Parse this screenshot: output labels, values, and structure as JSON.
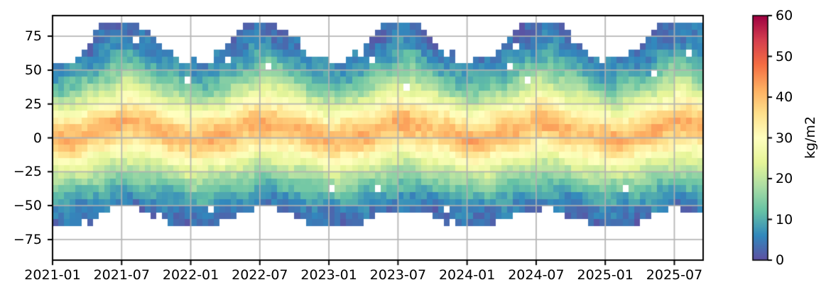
{
  "figure": {
    "background": "#ffffff"
  },
  "chart_data": {
    "type": "heatmap",
    "title": "",
    "xlabel": "",
    "ylabel": "",
    "x_axis": {
      "tick_labels": [
        "2021-01",
        "2021-07",
        "2022-01",
        "2022-07",
        "2023-01",
        "2023-07",
        "2024-01",
        "2024-07",
        "2025-01",
        "2025-07"
      ],
      "tick_offsets_months": [
        0,
        6,
        12,
        18,
        24,
        30,
        36,
        42,
        48,
        54
      ],
      "range_months": [
        0,
        56.5
      ],
      "start_label": "2021-01"
    },
    "y_axis": {
      "tick_values": [
        75,
        50,
        25,
        0,
        -25,
        -50,
        -75
      ],
      "tick_labels": [
        "75",
        "50",
        "25",
        "0",
        "−25",
        "−50",
        "−75"
      ],
      "range": [
        -90.2,
        90.2
      ]
    },
    "grid": {
      "color": "#b0b0b0"
    },
    "colorbar": {
      "label": "kg/m2",
      "vmin": 0,
      "vmax": 60,
      "tick_values": [
        0,
        10,
        20,
        30,
        40,
        50,
        60
      ],
      "tick_labels": [
        "0",
        "10",
        "20",
        "30",
        "40",
        "50",
        "60"
      ],
      "colormap": "Spectral_r",
      "stops": [
        "#5e4fa2",
        "#3288bd",
        "#66c2a5",
        "#abdda4",
        "#e6f598",
        "#ffffbf",
        "#fee08b",
        "#fdae61",
        "#f46d43",
        "#d53e4f",
        "#9e0142"
      ]
    },
    "heatmap": {
      "columns": 113,
      "column_span_months": 0.5,
      "total_months": 56.5,
      "lat_bin_size": 5,
      "lat_centers": [
        -62.5,
        -57.5,
        -52.5,
        -47.5,
        -42.5,
        -37.5,
        -32.5,
        -27.5,
        -22.5,
        -17.5,
        -12.5,
        -7.5,
        -2.5,
        2.5,
        7.5,
        12.5,
        17.5,
        22.5,
        27.5,
        32.5,
        37.5,
        42.5,
        47.5,
        52.5,
        57.5,
        62.5,
        67.5,
        72.5,
        77.5,
        82.5
      ],
      "seasonal_profiles": {
        "anchor_months": [
          1,
          4,
          7,
          10
        ],
        "units": "kg/m2",
        "values": {
          "jan": [
            4,
            5,
            6,
            9,
            12,
            15,
            18,
            22,
            26,
            31,
            36,
            40,
            42,
            40,
            36,
            31,
            27,
            22,
            18,
            14,
            11,
            9,
            7,
            6,
            5,
            4,
            3,
            3,
            2,
            2
          ],
          "apr": [
            3,
            4,
            5,
            7,
            9,
            12,
            15,
            18,
            22,
            26,
            30,
            35,
            39,
            41,
            40,
            37,
            33,
            28,
            24,
            20,
            16,
            13,
            10,
            8,
            6,
            5,
            4,
            3,
            2,
            2
          ],
          "jul": [
            3,
            3,
            4,
            5,
            7,
            10,
            12,
            15,
            18,
            21,
            25,
            29,
            33,
            37,
            41,
            43,
            40,
            36,
            32,
            28,
            25,
            21,
            18,
            15,
            12,
            10,
            8,
            6,
            5,
            4
          ],
          "oct": [
            3,
            3,
            4,
            6,
            8,
            11,
            14,
            17,
            21,
            25,
            29,
            33,
            37,
            40,
            40,
            37,
            33,
            29,
            25,
            21,
            17,
            14,
            11,
            9,
            7,
            5,
            4,
            3,
            3,
            2
          ]
        }
      },
      "coverage": {
        "months": [
          1,
          2,
          3,
          4,
          5,
          6,
          7,
          8,
          9,
          10,
          11,
          12
        ],
        "north_lat_limit": [
          57,
          58,
          62,
          72,
          85,
          87,
          87,
          86,
          79,
          68,
          61,
          57
        ],
        "south_lat_limit": [
          -66,
          -66,
          -64,
          -60,
          -56,
          -53,
          -52,
          -53,
          -56,
          -59,
          -63,
          -65
        ]
      },
      "noise_amplitude_kg_m2": 2.3
    }
  }
}
